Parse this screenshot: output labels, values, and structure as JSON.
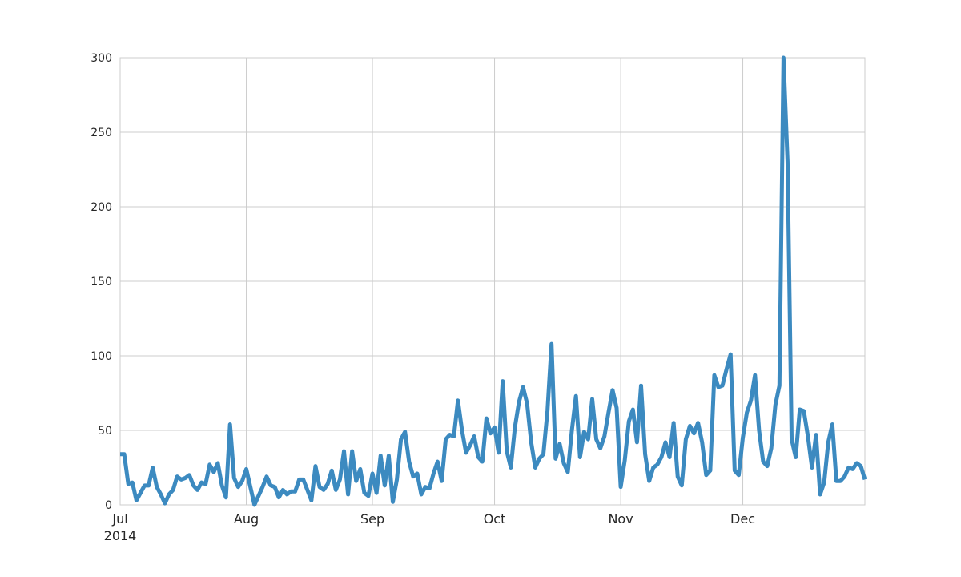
{
  "chart_data": {
    "type": "line",
    "title": "",
    "xlabel": "",
    "ylabel": "",
    "xlim": [
      "2014-07-01",
      "2014-12-31"
    ],
    "ylim": [
      0,
      300
    ],
    "grid": true,
    "legend": "none",
    "line_color": "#3c8ac0",
    "y_ticks": [
      {
        "value": 0,
        "label": "0"
      },
      {
        "value": 50,
        "label": "50"
      },
      {
        "value": 100,
        "label": "100"
      },
      {
        "value": 150,
        "label": "150"
      },
      {
        "value": 200,
        "label": "200"
      },
      {
        "value": 250,
        "label": "250"
      },
      {
        "value": 300,
        "label": "300"
      }
    ],
    "x_ticks": [
      {
        "date": "2014-07-01",
        "label": "Jul",
        "sublabel": "2014"
      },
      {
        "date": "2014-08-01",
        "label": "Aug",
        "sublabel": ""
      },
      {
        "date": "2014-09-01",
        "label": "Sep",
        "sublabel": ""
      },
      {
        "date": "2014-10-01",
        "label": "Oct",
        "sublabel": ""
      },
      {
        "date": "2014-11-01",
        "label": "Nov",
        "sublabel": ""
      },
      {
        "date": "2014-12-01",
        "label": "Dec",
        "sublabel": ""
      }
    ],
    "series": [
      {
        "x": [
          "2014-07-01",
          "2014-07-02",
          "2014-07-03",
          "2014-07-04",
          "2014-07-05",
          "2014-07-06",
          "2014-07-07",
          "2014-07-08",
          "2014-07-09",
          "2014-07-10",
          "2014-07-11",
          "2014-07-12",
          "2014-07-13",
          "2014-07-14",
          "2014-07-15",
          "2014-07-16",
          "2014-07-17",
          "2014-07-18",
          "2014-07-19",
          "2014-07-20",
          "2014-07-21",
          "2014-07-22",
          "2014-07-23",
          "2014-07-24",
          "2014-07-25",
          "2014-07-26",
          "2014-07-27",
          "2014-07-28",
          "2014-07-29",
          "2014-07-30",
          "2014-07-31",
          "2014-08-01",
          "2014-08-02",
          "2014-08-03",
          "2014-08-04",
          "2014-08-05",
          "2014-08-06",
          "2014-08-07",
          "2014-08-08",
          "2014-08-09",
          "2014-08-10",
          "2014-08-11",
          "2014-08-12",
          "2014-08-13",
          "2014-08-14",
          "2014-08-15",
          "2014-08-16",
          "2014-08-17",
          "2014-08-18",
          "2014-08-19",
          "2014-08-20",
          "2014-08-21",
          "2014-08-22",
          "2014-08-23",
          "2014-08-24",
          "2014-08-25",
          "2014-08-26",
          "2014-08-27",
          "2014-08-28",
          "2014-08-29",
          "2014-08-30",
          "2014-08-31",
          "2014-09-01",
          "2014-09-02",
          "2014-09-03",
          "2014-09-04",
          "2014-09-05",
          "2014-09-06",
          "2014-09-07",
          "2014-09-08",
          "2014-09-09",
          "2014-09-10",
          "2014-09-11",
          "2014-09-12",
          "2014-09-13",
          "2014-09-14",
          "2014-09-15",
          "2014-09-16",
          "2014-09-17",
          "2014-09-18",
          "2014-09-19",
          "2014-09-20",
          "2014-09-21",
          "2014-09-22",
          "2014-09-23",
          "2014-09-24",
          "2014-09-25",
          "2014-09-26",
          "2014-09-27",
          "2014-09-28",
          "2014-09-29",
          "2014-09-30",
          "2014-10-01",
          "2014-10-02",
          "2014-10-03",
          "2014-10-04",
          "2014-10-05",
          "2014-10-06",
          "2014-10-07",
          "2014-10-08",
          "2014-10-09",
          "2014-10-10",
          "2014-10-11",
          "2014-10-12",
          "2014-10-13",
          "2014-10-14",
          "2014-10-15",
          "2014-10-16",
          "2014-10-17",
          "2014-10-18",
          "2014-10-19",
          "2014-10-20",
          "2014-10-21",
          "2014-10-22",
          "2014-10-23",
          "2014-10-24",
          "2014-10-25",
          "2014-10-26",
          "2014-10-27",
          "2014-10-28",
          "2014-10-29",
          "2014-10-30",
          "2014-10-31",
          "2014-11-01",
          "2014-11-02",
          "2014-11-03",
          "2014-11-04",
          "2014-11-05",
          "2014-11-06",
          "2014-11-07",
          "2014-11-08",
          "2014-11-09",
          "2014-11-10",
          "2014-11-11",
          "2014-11-12",
          "2014-11-13",
          "2014-11-14",
          "2014-11-15",
          "2014-11-16",
          "2014-11-17",
          "2014-11-18",
          "2014-11-19",
          "2014-11-20",
          "2014-11-21",
          "2014-11-22",
          "2014-11-23",
          "2014-11-24",
          "2014-11-25",
          "2014-11-26",
          "2014-11-27",
          "2014-11-28",
          "2014-11-29",
          "2014-11-30",
          "2014-12-01",
          "2014-12-02",
          "2014-12-03",
          "2014-12-04",
          "2014-12-05",
          "2014-12-06",
          "2014-12-07",
          "2014-12-08",
          "2014-12-09",
          "2014-12-10",
          "2014-12-11",
          "2014-12-12",
          "2014-12-13",
          "2014-12-14",
          "2014-12-15",
          "2014-12-16",
          "2014-12-17",
          "2014-12-18",
          "2014-12-19",
          "2014-12-20",
          "2014-12-21",
          "2014-12-22",
          "2014-12-23",
          "2014-12-24",
          "2014-12-25",
          "2014-12-26",
          "2014-12-27",
          "2014-12-28",
          "2014-12-29",
          "2014-12-30",
          "2014-12-31"
        ],
        "values": [
          34,
          34,
          14,
          15,
          3,
          8,
          13,
          13,
          25,
          12,
          7,
          1,
          7,
          10,
          19,
          17,
          18,
          20,
          13,
          10,
          15,
          14,
          27,
          22,
          28,
          13,
          5,
          54,
          18,
          12,
          16,
          24,
          12,
          0,
          6,
          12,
          19,
          13,
          12,
          5,
          10,
          7,
          9,
          9,
          17,
          17,
          10,
          3,
          26,
          12,
          10,
          14,
          23,
          10,
          17,
          36,
          7,
          36,
          16,
          24,
          8,
          6,
          21,
          8,
          33,
          13,
          33,
          2,
          17,
          44,
          49,
          29,
          19,
          21,
          7,
          12,
          11,
          21,
          29,
          16,
          44,
          47,
          46,
          70,
          50,
          35,
          40,
          46,
          32,
          29,
          58,
          48,
          52,
          35,
          83,
          36,
          25,
          52,
          69,
          79,
          68,
          42,
          25,
          31,
          34,
          63,
          108,
          31,
          41,
          28,
          22,
          50,
          73,
          32,
          49,
          44,
          71,
          44,
          38,
          46,
          62,
          77,
          65,
          12,
          30,
          56,
          64,
          42,
          80,
          34,
          16,
          25,
          27,
          32,
          42,
          32,
          55,
          19,
          13,
          44,
          53,
          48,
          55,
          42,
          20,
          23,
          87,
          79,
          80,
          91,
          101,
          23,
          20,
          45,
          62,
          70,
          87,
          50,
          29,
          26,
          38,
          67,
          80,
          300,
          230,
          44,
          32,
          64,
          63,
          46,
          25,
          47,
          7,
          15,
          42,
          54,
          16,
          16,
          19,
          25,
          24,
          28,
          26,
          17
        ]
      }
    ]
  }
}
